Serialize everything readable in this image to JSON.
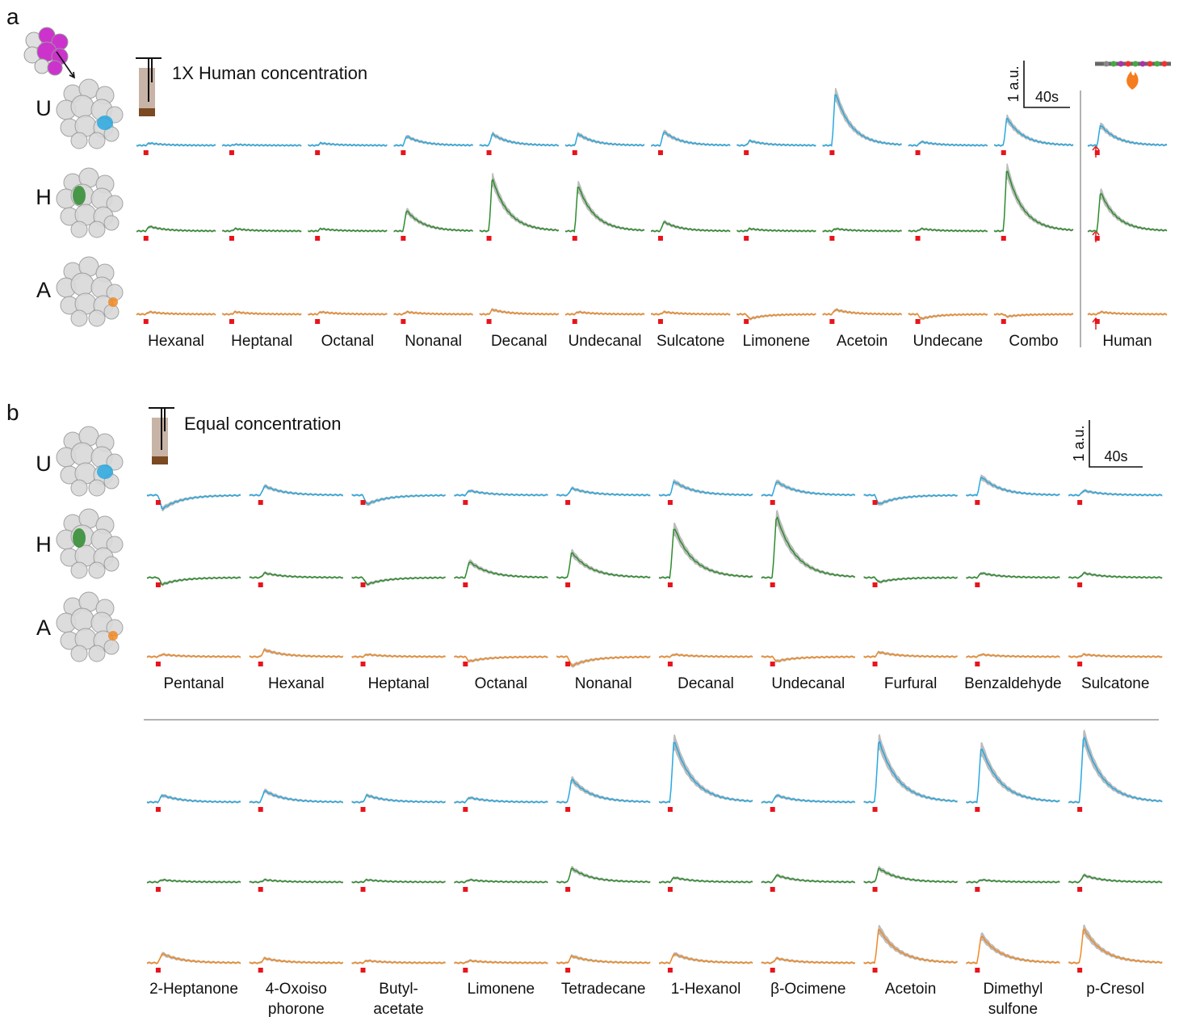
{
  "panels": [
    {
      "letter": "a",
      "title": "1X Human concentration",
      "scale": {
        "y": "1 a.u.",
        "x": "40s"
      },
      "rows": [
        {
          "label": "U",
          "color": "#29a8df"
        },
        {
          "label": "H",
          "color": "#2e8b2e"
        },
        {
          "label": "A",
          "color": "#f08a24"
        }
      ],
      "groups": [
        {
          "odors": [
            "Hexanal",
            "Heptanal",
            "Octanal",
            "Nonanal",
            "Decanal",
            "Undecanal",
            "Sulcatone",
            "Limonene",
            "Acetoin",
            "Undecane",
            "Combo",
            "Human"
          ],
          "peaks": [
            [
              0.05,
              0.02,
              0.05,
              0.2,
              0.25,
              0.25,
              0.3,
              0.1,
              1.15,
              0.08,
              0.6,
              0.45
            ],
            [
              0.1,
              0.05,
              0.05,
              0.45,
              1.15,
              1.0,
              0.2,
              0.05,
              0.05,
              0.05,
              1.35,
              0.85
            ],
            [
              0.05,
              0.05,
              0.05,
              0.05,
              0.1,
              0.05,
              0.05,
              -0.1,
              0.1,
              -0.1,
              -0.05,
              0.05
            ]
          ]
        }
      ]
    },
    {
      "letter": "b",
      "title": "Equal concentration",
      "scale": {
        "y": "1 a.u.",
        "x": "40s"
      },
      "rows": [
        {
          "label": "U",
          "color": "#29a8df"
        },
        {
          "label": "H",
          "color": "#2e8b2e"
        },
        {
          "label": "A",
          "color": "#f08a24"
        }
      ],
      "groups": [
        {
          "odors": [
            "Pentanal",
            "Hexanal",
            "Heptanal",
            "Octanal",
            "Nonanal",
            "Decanal",
            "Undecanal",
            "Furfural",
            "Benzaldehyde",
            "Sulcatone"
          ],
          "peaks": [
            [
              -0.3,
              0.2,
              -0.2,
              0.1,
              0.15,
              0.3,
              0.3,
              -0.2,
              0.4,
              0.1
            ],
            [
              -0.15,
              0.1,
              -0.15,
              0.35,
              0.55,
              1.1,
              1.35,
              -0.1,
              0.1,
              0.1
            ],
            [
              0.05,
              0.15,
              0.05,
              -0.1,
              -0.2,
              0.05,
              -0.1,
              0.1,
              0.05,
              0.05
            ]
          ]
        },
        {
          "odors": [
            "2-Heptanone",
            "4-Oxoiso\nphorone",
            "Butyl-\nacetate",
            "Limonene",
            "Tetradecane",
            "1-Hexanol",
            "β-Ocimene",
            "Acetoin",
            "Dimethyl\nsulfone",
            "p-Cresol"
          ],
          "peaks": [
            [
              0.15,
              0.25,
              0.15,
              0.1,
              0.5,
              1.35,
              0.15,
              1.35,
              1.2,
              1.45
            ],
            [
              0.05,
              0.05,
              0.05,
              0.05,
              0.3,
              0.1,
              0.15,
              0.3,
              0.05,
              0.15
            ],
            [
              0.2,
              0.1,
              0.05,
              0.05,
              0.15,
              0.2,
              0.1,
              0.75,
              0.6,
              0.75
            ]
          ]
        }
      ]
    }
  ]
}
